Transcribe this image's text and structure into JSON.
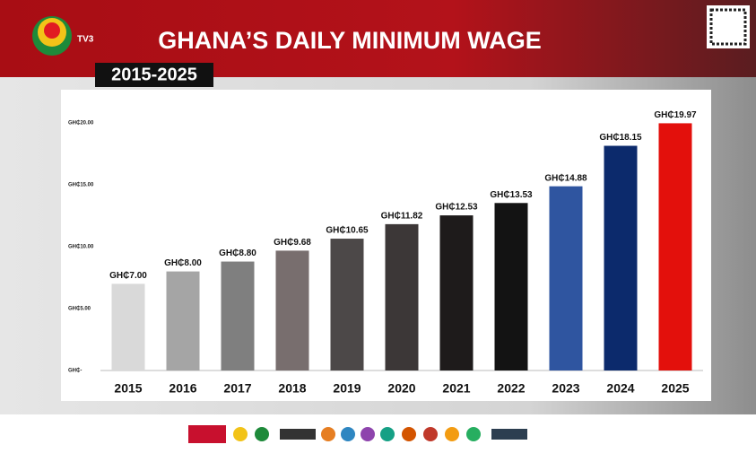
{
  "chart_data": {
    "type": "bar",
    "title": "GHANA’S DAILY MINIMUM WAGE",
    "subtitle": "2015-2025",
    "brand": "TV3",
    "categories": [
      "2015",
      "2016",
      "2017",
      "2018",
      "2019",
      "2020",
      "2021",
      "2022",
      "2023",
      "2024",
      "2025"
    ],
    "values": [
      7.0,
      8.0,
      8.8,
      9.68,
      10.65,
      11.82,
      12.53,
      13.53,
      14.88,
      18.15,
      19.97
    ],
    "value_labels": [
      "GH₵7.00",
      "GH₵8.00",
      "GH₵8.80",
      "GH₵9.68",
      "GH₵10.65",
      "GH₵11.82",
      "GH₵12.53",
      "GH₵13.53",
      "GH₵14.88",
      "GH₵18.15",
      "GH₵19.97"
    ],
    "colors": [
      "#d9d9d9",
      "#a5a5a5",
      "#7f7f7f",
      "#786e6e",
      "#4c4848",
      "#3c3737",
      "#1e1b1b",
      "#131313",
      "#2f55a0",
      "#0c2a6c",
      "#e3100c"
    ],
    "ylim": [
      0,
      20
    ],
    "yticks": [
      {
        "value": 0,
        "label": "GH₵-"
      },
      {
        "value": 5,
        "label": "GH₵5.00"
      },
      {
        "value": 10,
        "label": "GH₵10.00"
      },
      {
        "value": 15,
        "label": "GH₵15.00"
      },
      {
        "value": 20,
        "label": "GH₵20.00"
      }
    ],
    "grid": false
  }
}
